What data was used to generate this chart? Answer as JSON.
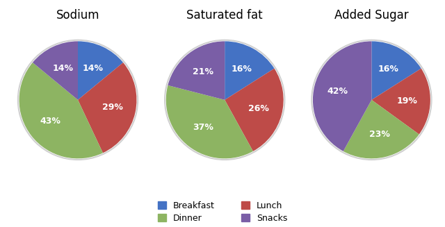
{
  "charts": [
    {
      "title": "Sodium",
      "values": [
        14,
        29,
        43,
        14
      ],
      "startangle": 90
    },
    {
      "title": "Saturated fat",
      "values": [
        16,
        26,
        37,
        21
      ],
      "startangle": 90
    },
    {
      "title": "Added Sugar",
      "values": [
        16,
        19,
        23,
        42
      ],
      "startangle": 90
    }
  ],
  "colors": [
    "#4472C4",
    "#BE4B48",
    "#8DB462",
    "#7A5EA6"
  ],
  "legend_labels": [
    "Breakfast",
    "Dinner",
    "Lunch",
    "Snacks"
  ],
  "legend_colors": [
    "#4472C4",
    "#8DB462",
    "#BE4B48",
    "#7A5EA6"
  ],
  "background_color": "#ffffff",
  "title_fontsize": 12,
  "label_fontsize": 9
}
